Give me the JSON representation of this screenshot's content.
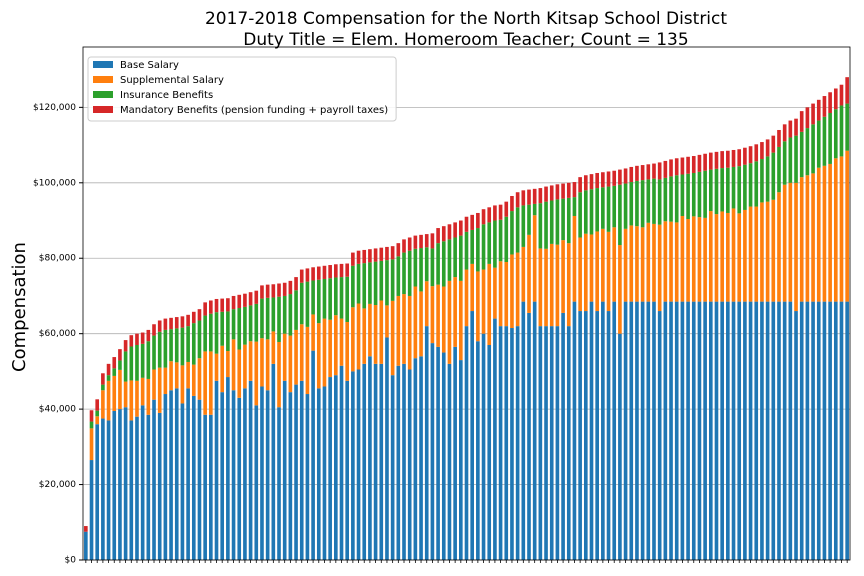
{
  "chart_data": {
    "type": "stacked_bar",
    "title": [
      "2017-2018 Compensation for the North Kitsap School District",
      "Duty Title = Elem. Homeroom Teacher; Count = 135"
    ],
    "ylabel": "Compensation",
    "categories": [
      null,
      null,
      null,
      null,
      null,
      null,
      null,
      null,
      null,
      null,
      null,
      null,
      null,
      null,
      null,
      null,
      null,
      null,
      null,
      null,
      null,
      null,
      null,
      null,
      null,
      null,
      null,
      null,
      null,
      null,
      null,
      null,
      null,
      null,
      null,
      null,
      null,
      null,
      null,
      null,
      null,
      null,
      null,
      null,
      null,
      null,
      null,
      null,
      null,
      null,
      null,
      null,
      null,
      null,
      null,
      null,
      null,
      null,
      null,
      null,
      null,
      null,
      null,
      null,
      null,
      null,
      null,
      null,
      null,
      null,
      null,
      null,
      null,
      null,
      null,
      null,
      null,
      null,
      null,
      null,
      null,
      null,
      null,
      null,
      null,
      null,
      null,
      null,
      null,
      null,
      null,
      null,
      null,
      null,
      null,
      null,
      null,
      null,
      null,
      null,
      null,
      null,
      null,
      null,
      null,
      null,
      null,
      null,
      null,
      null,
      null,
      null,
      null,
      null,
      null,
      null,
      null,
      null,
      null,
      null,
      null,
      null,
      null,
      null,
      null,
      null,
      null,
      null,
      null,
      null,
      null,
      null,
      null,
      null,
      null
    ],
    "series": [
      {
        "name": "Base Salary",
        "color": "#1f77b4",
        "values": [
          7500,
          26500,
          36000,
          37500,
          37000,
          39500,
          40000,
          40500,
          37000,
          38000,
          41000,
          38500,
          42500,
          39000,
          44000,
          45000,
          45500,
          41500,
          45500,
          43500,
          42500,
          38500,
          38500,
          47500,
          44500,
          48500,
          45000,
          43000,
          45500,
          47500,
          41000,
          46000,
          45000,
          52000,
          40500,
          47500,
          44500,
          46500,
          47500,
          44000,
          55500,
          45500,
          46000,
          48500,
          49000,
          51500,
          47500,
          50000,
          50500,
          52000,
          54000,
          52000,
          52000,
          59000,
          49000,
          51500,
          52000,
          50500,
          53500,
          54000,
          62000,
          57500,
          56500,
          55000,
          52000,
          56500,
          53000,
          62000,
          66000,
          58000,
          60000,
          57000,
          64000,
          62000,
          62000,
          61500,
          62000,
          68500,
          65500,
          68500,
          62000,
          62000,
          62000,
          62000,
          65500,
          62000,
          68500,
          66000,
          66000,
          68500,
          66000,
          68500,
          66000,
          68500,
          60000,
          68500,
          68500,
          68500,
          68500,
          68500,
          68500,
          66000,
          68500,
          68500,
          68500,
          68500,
          68500,
          68500,
          68500,
          68500,
          68500,
          68500,
          68500,
          68500,
          68500,
          68500,
          68500,
          68500,
          68500,
          68500,
          68500,
          68500,
          68500,
          68500,
          68500,
          66000,
          68500,
          68500,
          68500,
          68500,
          68500,
          68500,
          68500,
          68500,
          68500
        ]
      },
      {
        "name": "Supplemental Salary",
        "color": "#ff7f0e",
        "values": [
          0,
          8400,
          2100,
          7500,
          10500,
          9300,
          10400,
          6800,
          10600,
          9500,
          7300,
          9500,
          8000,
          12000,
          7000,
          7700,
          6900,
          10100,
          7000,
          8300,
          11000,
          16800,
          16800,
          7200,
          12300,
          6900,
          13500,
          12800,
          11600,
          10500,
          16900,
          12800,
          13500,
          8600,
          17300,
          12500,
          15000,
          14500,
          15000,
          17800,
          9600,
          17300,
          18000,
          15200,
          15900,
          12500,
          15600,
          17000,
          17500,
          14700,
          13900,
          15600,
          16800,
          8500,
          19700,
          18500,
          18500,
          19500,
          19000,
          17200,
          11900,
          15100,
          16500,
          17500,
          22000,
          18500,
          21000,
          15000,
          12500,
          18500,
          17000,
          21500,
          13500,
          17200,
          17000,
          19500,
          19500,
          14500,
          20700,
          22900,
          20600,
          20500,
          21800,
          21600,
          19300,
          22000,
          22700,
          19500,
          20500,
          17800,
          21100,
          19300,
          21000,
          19700,
          23500,
          19300,
          20200,
          20000,
          19700,
          20900,
          20600,
          22900,
          21300,
          21200,
          21000,
          22700,
          21900,
          22600,
          22400,
          22200,
          24000,
          23200,
          23900,
          23500,
          24700,
          23400,
          24300,
          25200,
          25200,
          26300,
          26500,
          27000,
          29000,
          31000,
          31500,
          34000,
          33000,
          33500,
          34000,
          35500,
          36000,
          36500,
          38000,
          38500,
          40000
        ]
      },
      {
        "name": "Insurance Benefits",
        "color": "#2ca02c",
        "values": [
          0,
          1800,
          1500,
          1500,
          1500,
          2000,
          2500,
          8000,
          9000,
          9500,
          9000,
          10000,
          9000,
          9500,
          10000,
          8500,
          9000,
          10000,
          9500,
          11000,
          10000,
          9500,
          10000,
          11000,
          9000,
          10500,
          8000,
          11000,
          10000,
          9500,
          10000,
          10500,
          11000,
          9000,
          12000,
          10000,
          11000,
          10500,
          11000,
          12000,
          9000,
          11500,
          10500,
          11000,
          10000,
          11000,
          12000,
          11000,
          10500,
          12000,
          11000,
          11500,
          10500,
          12000,
          11000,
          10500,
          11000,
          12000,
          10000,
          11500,
          9000,
          10000,
          11000,
          12000,
          11000,
          10500,
          12000,
          10000,
          9000,
          11500,
          12000,
          11000,
          12500,
          11000,
          12000,
          11500,
          12000,
          11000,
          8000,
          3000,
          12000,
          12500,
          11500,
          12000,
          11000,
          12000,
          5000,
          12000,
          11500,
          12000,
          11500,
          11000,
          12000,
          11000,
          16000,
          12000,
          11500,
          12000,
          12500,
          11500,
          12000,
          12000,
          11500,
          12000,
          12500,
          11000,
          12000,
          11500,
          12000,
          12500,
          11000,
          12000,
          11500,
          12000,
          11000,
          12500,
          12000,
          11500,
          12000,
          11500,
          12000,
          12500,
          12000,
          11500,
          12000,
          12500,
          12000,
          12500,
          13000,
          12500,
          13000,
          13500,
          13000,
          13500,
          12500
        ]
      },
      {
        "name": "Mandatory Benefits (pension funding + payroll taxes)",
        "color": "#d62728",
        "values": [
          1500,
          3000,
          3000,
          3000,
          3000,
          3000,
          3000,
          3000,
          3000,
          3000,
          3000,
          3000,
          3000,
          3000,
          3000,
          3000,
          3000,
          3000,
          3000,
          3000,
          3000,
          3500,
          3500,
          3500,
          3500,
          3500,
          3500,
          3500,
          3500,
          3500,
          3500,
          3500,
          3500,
          3500,
          3500,
          3500,
          3500,
          3500,
          3500,
          3500,
          3500,
          3500,
          3500,
          3500,
          3500,
          3500,
          3500,
          3500,
          3500,
          3500,
          3500,
          3500,
          3500,
          3500,
          3500,
          3500,
          3500,
          3500,
          3500,
          3500,
          3500,
          4000,
          4000,
          4000,
          4000,
          4000,
          4000,
          4000,
          4000,
          4000,
          4000,
          4000,
          4000,
          4000,
          4000,
          4000,
          4000,
          4000,
          4000,
          4000,
          4000,
          4000,
          4000,
          4000,
          4000,
          4000,
          4000,
          4000,
          4000,
          4000,
          4000,
          4000,
          4000,
          4000,
          4000,
          4000,
          4000,
          4000,
          4000,
          4000,
          4000,
          4500,
          4500,
          4500,
          4500,
          4500,
          4500,
          4500,
          4500,
          4500,
          4500,
          4500,
          4500,
          4500,
          4500,
          4500,
          4500,
          4500,
          4500,
          4500,
          4500,
          4500,
          4500,
          4500,
          4500,
          4500,
          5500,
          5500,
          5500,
          5500,
          5500,
          5500,
          5500,
          5500,
          7000
        ]
      }
    ],
    "ylim": [
      0,
      136000
    ],
    "yticks": [
      {
        "value": 0,
        "label": "$0"
      },
      {
        "value": 20000,
        "label": "$20,000"
      },
      {
        "value": 40000,
        "label": "$40,000"
      },
      {
        "value": 60000,
        "label": "$60,000"
      },
      {
        "value": 80000,
        "label": "$80,000"
      },
      {
        "value": 100000,
        "label": "$100,000"
      },
      {
        "value": 120000,
        "label": "$120,000"
      }
    ],
    "grid": true,
    "legend": "upper-left"
  }
}
